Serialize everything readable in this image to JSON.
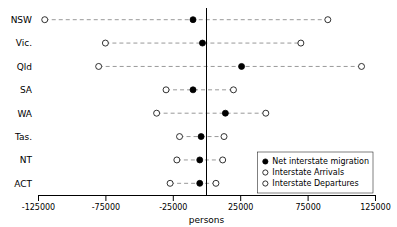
{
  "chart_data": {
    "type": "dot",
    "categories": [
      "NSW",
      "Vic.",
      "Qld",
      "SA",
      "WA",
      "Tas.",
      "NT",
      "ACT"
    ],
    "series": [
      {
        "name": "Net interstate migration",
        "color": "#000000",
        "values": [
          -10000,
          -3000,
          26000,
          -10000,
          14000,
          -4000,
          -5000,
          -5000
        ]
      },
      {
        "name": "Interstate Arrivals",
        "color": "#ffffff",
        "values": [
          90000,
          70000,
          115000,
          20000,
          44000,
          13000,
          12000,
          7000
        ]
      },
      {
        "name": "Interstate Departures",
        "color": "#ffffff",
        "values": [
          -120000,
          -75000,
          -80000,
          -30000,
          -37000,
          -20000,
          -22000,
          -27000
        ]
      }
    ],
    "xlim": [
      -125000,
      125000
    ],
    "xticks": [
      -125000,
      -75000,
      -25000,
      25000,
      75000,
      125000
    ],
    "xlabel": "persons",
    "vline": 0,
    "line_style": "dashed",
    "grid": false,
    "legend": "lower right"
  }
}
